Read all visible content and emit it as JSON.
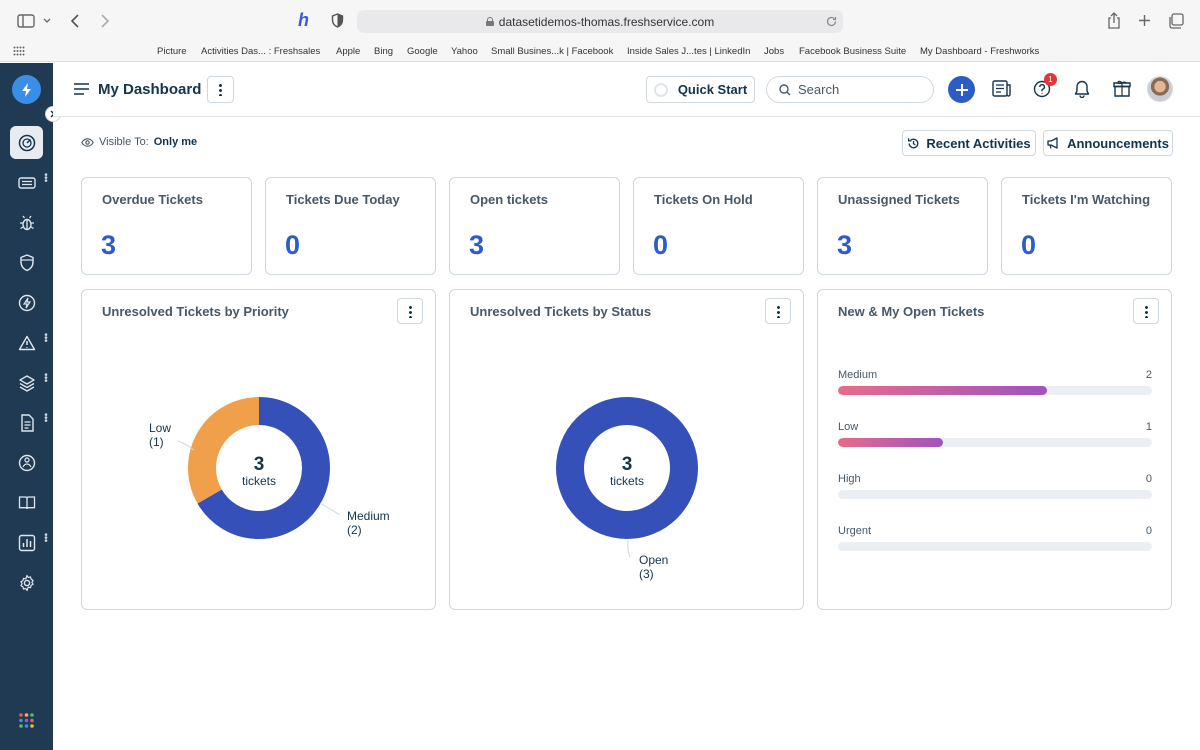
{
  "browser": {
    "url": "datasetidemos-thomas.freshservice.com",
    "bookmarks": [
      "Picture",
      "Activities Das... : Freshsales",
      "Apple",
      "Bing",
      "Google",
      "Yahoo",
      "Small Busines...k | Facebook",
      "Inside Sales J...tes | LinkedIn",
      "Jobs",
      "Facebook Business Suite",
      "My Dashboard - Freshworks"
    ]
  },
  "header": {
    "title": "My Dashboard",
    "quick_start": "Quick Start",
    "search_placeholder": "Search",
    "help_badge": "1"
  },
  "visibility": {
    "label": "Visible To:",
    "value": "Only me"
  },
  "actions": {
    "recent_activities": "Recent Activities",
    "announcements": "Announcements"
  },
  "cards": [
    {
      "title": "Overdue Tickets",
      "value": "3"
    },
    {
      "title": "Tickets Due Today",
      "value": "0"
    },
    {
      "title": "Open tickets",
      "value": "3"
    },
    {
      "title": "Tickets On Hold",
      "value": "0"
    },
    {
      "title": "Unassigned Tickets",
      "value": "3"
    },
    {
      "title": "Tickets I'm Watching",
      "value": "0"
    }
  ],
  "widgets": {
    "priority": {
      "title": "Unresolved Tickets by Priority",
      "center_value": "3",
      "center_label": "tickets",
      "labels": [
        {
          "name": "Low",
          "count": "(1)"
        },
        {
          "name": "Medium",
          "count": "(2)"
        }
      ]
    },
    "status": {
      "title": "Unresolved Tickets by Status",
      "center_value": "3",
      "center_label": "tickets",
      "labels": [
        {
          "name": "Open",
          "count": "(3)"
        }
      ]
    },
    "open_tickets": {
      "title": "New & My Open Tickets",
      "max": 3,
      "rows": [
        {
          "label": "Medium",
          "count": "2",
          "value": 2
        },
        {
          "label": "Low",
          "count": "1",
          "value": 1
        },
        {
          "label": "High",
          "count": "0",
          "value": 0
        },
        {
          "label": "Urgent",
          "count": "0",
          "value": 0
        }
      ]
    }
  },
  "chart_data": [
    {
      "type": "pie",
      "title": "Unresolved Tickets by Priority",
      "categories": [
        "Medium",
        "Low"
      ],
      "values": [
        2,
        1
      ],
      "colors": [
        "#3550b8",
        "#f0a04a"
      ]
    },
    {
      "type": "pie",
      "title": "Unresolved Tickets by Status",
      "categories": [
        "Open"
      ],
      "values": [
        3
      ],
      "colors": [
        "#3550b8"
      ]
    },
    {
      "type": "bar",
      "title": "New & My Open Tickets",
      "categories": [
        "Medium",
        "Low",
        "High",
        "Urgent"
      ],
      "values": [
        2,
        1,
        0,
        0
      ]
    }
  ],
  "colors": {
    "sidebar": "#1f3a52",
    "accent": "#2c5cc5",
    "badge": "#e43538"
  }
}
